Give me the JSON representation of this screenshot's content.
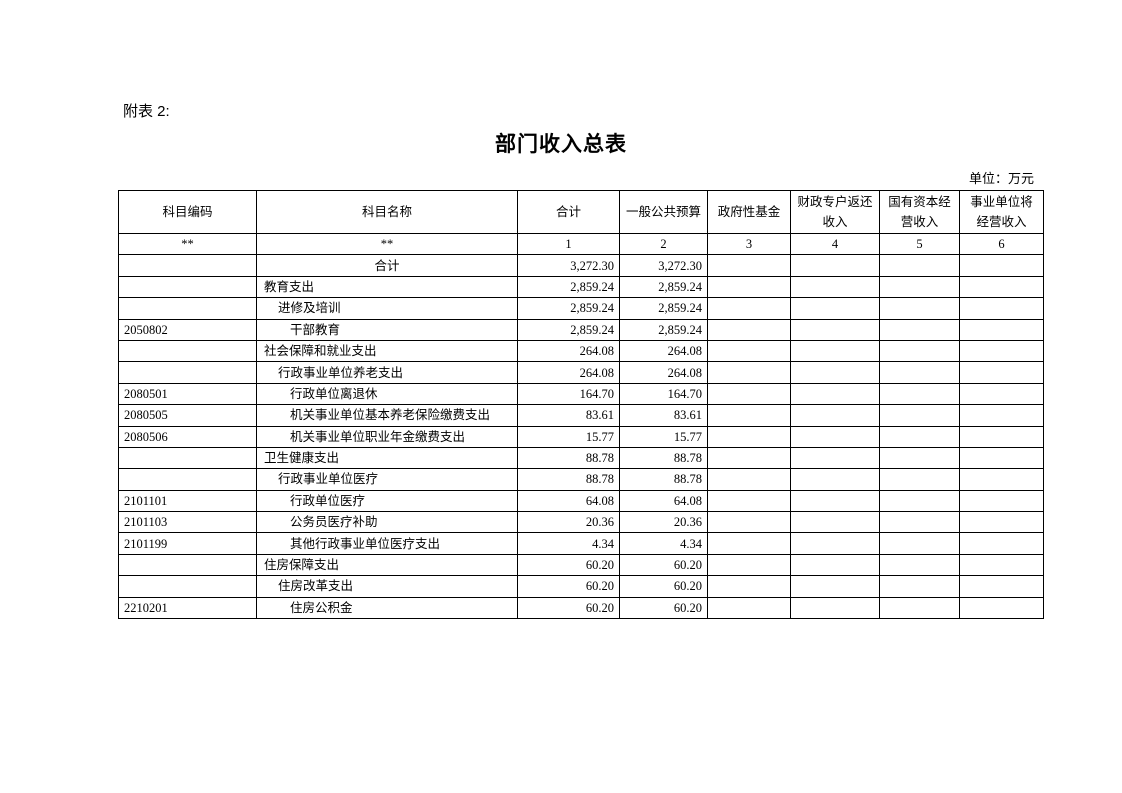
{
  "attachment_label": "附表 2:",
  "title": "部门收入总表",
  "unit": "单位：万元",
  "headers": [
    "科目编码",
    "科目名称",
    "合计",
    "一般公共预算",
    "政府性基金",
    "财政专户返还收入",
    "国有资本经营收入",
    "事业单位将经营收入"
  ],
  "index_row": [
    "**",
    "**",
    "1",
    "2",
    "3",
    "4",
    "5",
    "6"
  ],
  "rows": [
    {
      "code": "",
      "name": "合计",
      "level": "total",
      "total": "3,272.30",
      "general": "3,272.30",
      "fund": "",
      "special": "",
      "state": "",
      "biz": ""
    },
    {
      "code": "",
      "name": "教育支出",
      "level": 0,
      "total": "2,859.24",
      "general": "2,859.24",
      "fund": "",
      "special": "",
      "state": "",
      "biz": ""
    },
    {
      "code": "",
      "name": "进修及培训",
      "level": 1,
      "total": "2,859.24",
      "general": "2,859.24",
      "fund": "",
      "special": "",
      "state": "",
      "biz": ""
    },
    {
      "code": "2050802",
      "name": "干部教育",
      "level": 2,
      "total": "2,859.24",
      "general": "2,859.24",
      "fund": "",
      "special": "",
      "state": "",
      "biz": ""
    },
    {
      "code": "",
      "name": "社会保障和就业支出",
      "level": 0,
      "total": "264.08",
      "general": "264.08",
      "fund": "",
      "special": "",
      "state": "",
      "biz": ""
    },
    {
      "code": "",
      "name": "行政事业单位养老支出",
      "level": 1,
      "total": "264.08",
      "general": "264.08",
      "fund": "",
      "special": "",
      "state": "",
      "biz": ""
    },
    {
      "code": "2080501",
      "name": "行政单位离退休",
      "level": 2,
      "total": "164.70",
      "general": "164.70",
      "fund": "",
      "special": "",
      "state": "",
      "biz": ""
    },
    {
      "code": "2080505",
      "name": "机关事业单位基本养老保险缴费支出",
      "level": 2,
      "total": "83.61",
      "general": "83.61",
      "fund": "",
      "special": "",
      "state": "",
      "biz": ""
    },
    {
      "code": "2080506",
      "name": "机关事业单位职业年金缴费支出",
      "level": 2,
      "total": "15.77",
      "general": "15.77",
      "fund": "",
      "special": "",
      "state": "",
      "biz": ""
    },
    {
      "code": "",
      "name": "卫生健康支出",
      "level": 0,
      "total": "88.78",
      "general": "88.78",
      "fund": "",
      "special": "",
      "state": "",
      "biz": ""
    },
    {
      "code": "",
      "name": "行政事业单位医疗",
      "level": 1,
      "total": "88.78",
      "general": "88.78",
      "fund": "",
      "special": "",
      "state": "",
      "biz": ""
    },
    {
      "code": "2101101",
      "name": "行政单位医疗",
      "level": 2,
      "total": "64.08",
      "general": "64.08",
      "fund": "",
      "special": "",
      "state": "",
      "biz": ""
    },
    {
      "code": "2101103",
      "name": "公务员医疗补助",
      "level": 2,
      "total": "20.36",
      "general": "20.36",
      "fund": "",
      "special": "",
      "state": "",
      "biz": ""
    },
    {
      "code": "2101199",
      "name": "其他行政事业单位医疗支出",
      "level": 2,
      "total": "4.34",
      "general": "4.34",
      "fund": "",
      "special": "",
      "state": "",
      "biz": ""
    },
    {
      "code": "",
      "name": "住房保障支出",
      "level": 0,
      "total": "60.20",
      "general": "60.20",
      "fund": "",
      "special": "",
      "state": "",
      "biz": ""
    },
    {
      "code": "",
      "name": "住房改革支出",
      "level": 1,
      "total": "60.20",
      "general": "60.20",
      "fund": "",
      "special": "",
      "state": "",
      "biz": ""
    },
    {
      "code": "2210201",
      "name": "住房公积金",
      "level": 2,
      "total": "60.20",
      "general": "60.20",
      "fund": "",
      "special": "",
      "state": "",
      "biz": ""
    }
  ]
}
